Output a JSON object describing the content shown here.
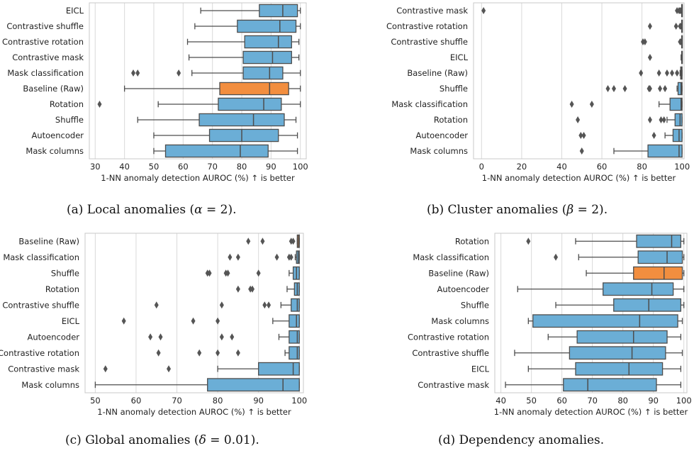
{
  "colors": {
    "box": "#6baed6",
    "highlight": "#f28e3f",
    "edge": "#4d4d4d",
    "grid": "#d9d9d9",
    "outlier": "#555555"
  },
  "chart_data": [
    {
      "type": "box",
      "id": "a",
      "caption_text": "(a) Local anomalies (",
      "caption_greek": "α",
      "caption_rest": " = 2).",
      "xlabel": "1-NN anomaly detection AUROC (%) ↑ is better",
      "xlim": [
        28,
        102
      ],
      "xticks": [
        30,
        40,
        50,
        60,
        70,
        80,
        90,
        100
      ],
      "highlight": "Baseline (Raw)",
      "categories": [
        "EICL",
        "Contrastive shuffle",
        "Contrastive rotation",
        "Contrastive mask",
        "Mask classification",
        "Baseline (Raw)",
        "Rotation",
        "Shuffle",
        "Autoencoder",
        "Mask columns"
      ],
      "boxes": [
        {
          "min": 66,
          "q1": 86,
          "median": 94,
          "q3": 99,
          "max": 100,
          "outliers": []
        },
        {
          "min": 64,
          "q1": 78.5,
          "median": 93,
          "q3": 98.5,
          "max": 100,
          "outliers": []
        },
        {
          "min": 61.5,
          "q1": 81,
          "median": 92.5,
          "q3": 97,
          "max": 99.5,
          "outliers": []
        },
        {
          "min": 62,
          "q1": 80.5,
          "median": 90.5,
          "q3": 97,
          "max": 99.5,
          "outliers": []
        },
        {
          "min": 63,
          "q1": 80.5,
          "median": 89.5,
          "q3": 94,
          "max": 100,
          "outliers": [
            43,
            44.5,
            58.5
          ]
        },
        {
          "min": 40,
          "q1": 72.5,
          "median": 89.5,
          "q3": 96,
          "max": 100,
          "outliers": []
        },
        {
          "min": 51.5,
          "q1": 72,
          "median": 87.5,
          "q3": 93.5,
          "max": 100,
          "outliers": [
            31.5
          ]
        },
        {
          "min": 44.5,
          "q1": 65.5,
          "median": 84,
          "q3": 94.5,
          "max": 98.5,
          "outliers": []
        },
        {
          "min": 50,
          "q1": 69,
          "median": 80,
          "q3": 92.5,
          "max": 99,
          "outliers": []
        },
        {
          "min": 50,
          "q1": 54,
          "median": 79.5,
          "q3": 89,
          "max": 99,
          "outliers": []
        }
      ]
    },
    {
      "type": "box",
      "id": "b",
      "caption_text": "(b) Cluster anomalies (",
      "caption_greek": "β",
      "caption_rest": " = 2).",
      "xlabel": "1-NN anomaly detection AUROC (%) ↑ is better",
      "xlim": [
        -4,
        101
      ],
      "xticks": [
        0,
        20,
        40,
        60,
        80,
        100
      ],
      "highlight": "Baseline (Raw)",
      "categories": [
        "Contrastive mask",
        "Contrastive rotation",
        "Contrastive shuffle",
        "EICL",
        "Baseline (Raw)",
        "Shuffle",
        "Mask classification",
        "Rotation",
        "Autoencoder",
        "Mask columns"
      ],
      "boxes": [
        {
          "min": 99.5,
          "q1": 99.8,
          "median": 99.9,
          "q3": 100,
          "max": 100,
          "outliers": [
            1,
            97.5,
            98.5,
            99
          ]
        },
        {
          "min": 99.5,
          "q1": 99.8,
          "median": 99.9,
          "q3": 100,
          "max": 100,
          "outliers": [
            84,
            97,
            99
          ]
        },
        {
          "min": 99.5,
          "q1": 99.8,
          "median": 99.9,
          "q3": 100,
          "max": 100,
          "outliers": [
            80.5,
            81.5,
            99
          ]
        },
        {
          "min": 99.5,
          "q1": 99.8,
          "median": 99.9,
          "q3": 100,
          "max": 100,
          "outliers": [
            84
          ]
        },
        {
          "min": 99,
          "q1": 99.3,
          "median": 99.6,
          "q3": 100,
          "max": 100,
          "outliers": [
            79.5,
            88.5,
            92.5,
            95,
            97.5
          ]
        },
        {
          "min": 97.5,
          "q1": 98,
          "median": 99.5,
          "q3": 100,
          "max": 100,
          "outliers": [
            63,
            66,
            71.5,
            83.5,
            84,
            89,
            91.5
          ]
        },
        {
          "min": 88.5,
          "q1": 94,
          "median": 99.5,
          "q3": 100,
          "max": 100,
          "outliers": [
            45,
            55
          ]
        },
        {
          "min": 92.5,
          "q1": 96.5,
          "median": 99,
          "q3": 100,
          "max": 100,
          "outliers": [
            48,
            84,
            89.5,
            91
          ]
        },
        {
          "min": 91.5,
          "q1": 95.5,
          "median": 98.5,
          "q3": 100,
          "max": 100,
          "outliers": [
            49.5,
            51,
            86
          ]
        },
        {
          "min": 66,
          "q1": 83,
          "median": 98.5,
          "q3": 100,
          "max": 100,
          "outliers": [
            50
          ]
        }
      ]
    },
    {
      "type": "box",
      "id": "c",
      "caption_text": "(c) Global anomalies (",
      "caption_greek": "δ",
      "caption_rest": " = 0.01).",
      "xlabel": "1-NN anomaly detection AUROC (%) ↑ is better",
      "xlim": [
        47.5,
        101
      ],
      "xticks": [
        50,
        60,
        70,
        80,
        90,
        100
      ],
      "highlight": "Baseline (Raw)",
      "categories": [
        "Baseline (Raw)",
        "Mask classification",
        "Shuffle",
        "Rotation",
        "Contrastive shuffle",
        "EICL",
        "Autoencoder",
        "Contrastive rotation",
        "Contrastive mask",
        "Mask columns"
      ],
      "boxes": [
        {
          "min": 99.5,
          "q1": 99.5,
          "median": 99.8,
          "q3": 100,
          "max": 100,
          "outliers": [
            87.5,
            91,
            98,
            98.5
          ]
        },
        {
          "min": 99,
          "q1": 99.3,
          "median": 99.7,
          "q3": 100,
          "max": 100,
          "outliers": [
            83,
            85,
            94.5,
            97.5,
            98
          ]
        },
        {
          "min": 97.5,
          "q1": 98.5,
          "median": 99.3,
          "q3": 100,
          "max": 100,
          "outliers": [
            77.5,
            78,
            82,
            82.5,
            90
          ]
        },
        {
          "min": 97,
          "q1": 98.8,
          "median": 99.5,
          "q3": 100,
          "max": 100,
          "outliers": [
            85,
            88,
            88.5
          ]
        },
        {
          "min": 95.5,
          "q1": 98,
          "median": 99.5,
          "q3": 100,
          "max": 100,
          "outliers": [
            65,
            81,
            91.5,
            92.5
          ]
        },
        {
          "min": 93.5,
          "q1": 97.5,
          "median": 99.3,
          "q3": 100,
          "max": 100,
          "outliers": [
            57,
            74,
            80
          ]
        },
        {
          "min": 95,
          "q1": 97.5,
          "median": 99.5,
          "q3": 100,
          "max": 100,
          "outliers": [
            63.5,
            66,
            81,
            83.5
          ]
        },
        {
          "min": 96.5,
          "q1": 97.5,
          "median": 99.5,
          "q3": 100,
          "max": 100,
          "outliers": [
            65.5,
            75.5,
            80,
            85
          ]
        },
        {
          "min": 80,
          "q1": 90,
          "median": 98.5,
          "q3": 100,
          "max": 100,
          "outliers": [
            52.5,
            68
          ]
        },
        {
          "min": 50,
          "q1": 77.5,
          "median": 96,
          "q3": 100,
          "max": 100,
          "outliers": []
        }
      ]
    },
    {
      "type": "box",
      "id": "d",
      "caption_text": "(d) Dependency anomalies.",
      "caption_greek": "",
      "caption_rest": "",
      "xlabel": "1-NN anomaly detection AUROC (%) ↑ is better",
      "xlim": [
        38,
        101
      ],
      "xticks": [
        40,
        50,
        60,
        70,
        80,
        90,
        100
      ],
      "highlight": "Baseline (Raw)",
      "categories": [
        "Rotation",
        "Mask classification",
        "Baseline (Raw)",
        "Autoencoder",
        "Shuffle",
        "Mask columns",
        "Contrastive rotation",
        "Contrastive shuffle",
        "EICL",
        "Contrastive mask"
      ],
      "boxes": [
        {
          "min": 64.5,
          "q1": 84.5,
          "median": 96,
          "q3": 99,
          "max": 100,
          "outliers": [
            49
          ]
        },
        {
          "min": 65.5,
          "q1": 85,
          "median": 94.5,
          "q3": 99.5,
          "max": 100,
          "outliers": [
            58
          ]
        },
        {
          "min": 68,
          "q1": 83.5,
          "median": 93.5,
          "q3": 99.5,
          "max": 100,
          "outliers": []
        },
        {
          "min": 45.5,
          "q1": 73.5,
          "median": 89.5,
          "q3": 96.5,
          "max": 100,
          "outliers": []
        },
        {
          "min": 58,
          "q1": 77,
          "median": 88.5,
          "q3": 99,
          "max": 100,
          "outliers": []
        },
        {
          "min": 49,
          "q1": 50.5,
          "median": 85.5,
          "q3": 98,
          "max": 99.5,
          "outliers": []
        },
        {
          "min": 55.5,
          "q1": 65,
          "median": 83.5,
          "q3": 94.5,
          "max": 99,
          "outliers": []
        },
        {
          "min": 44.5,
          "q1": 62.5,
          "median": 83,
          "q3": 94,
          "max": 99.5,
          "outliers": []
        },
        {
          "min": 49,
          "q1": 64.5,
          "median": 82,
          "q3": 93,
          "max": 99,
          "outliers": []
        },
        {
          "min": 41.5,
          "q1": 60.5,
          "median": 68.5,
          "q3": 91,
          "max": 99,
          "outliers": []
        }
      ]
    }
  ]
}
